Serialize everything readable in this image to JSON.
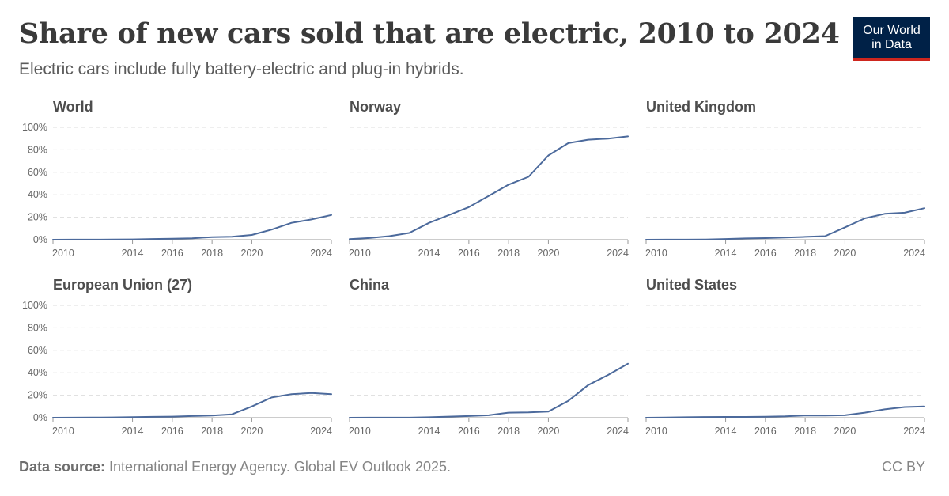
{
  "header": {
    "title": "Share of new cars sold that are electric, 2010 to 2024",
    "subtitle": "Electric cars include fully battery-electric and plug-in hybrids."
  },
  "logo": {
    "line1": "Our World",
    "line2": "in Data",
    "bg_color": "#002147",
    "accent_color": "#ce261e"
  },
  "footer": {
    "source_label": "Data source:",
    "source_text": " International Energy Agency. Global EV Outlook 2025.",
    "license": "CC BY"
  },
  "chart_data": [
    {
      "type": "line",
      "title": "World",
      "x": [
        2010,
        2011,
        2012,
        2013,
        2014,
        2015,
        2016,
        2017,
        2018,
        2019,
        2020,
        2021,
        2022,
        2023,
        2024
      ],
      "values": [
        0.01,
        0.05,
        0.1,
        0.2,
        0.3,
        0.6,
        0.9,
        1.3,
        2.3,
        2.6,
        4.2,
        9,
        15,
        18,
        22
      ]
    },
    {
      "type": "line",
      "title": "Norway",
      "x": [
        2010,
        2011,
        2012,
        2013,
        2014,
        2015,
        2016,
        2017,
        2018,
        2019,
        2020,
        2021,
        2022,
        2023,
        2024
      ],
      "values": [
        0.5,
        1.5,
        3.2,
        6,
        15,
        22,
        29,
        39,
        49,
        56,
        75,
        86,
        89,
        90,
        92
      ]
    },
    {
      "type": "line",
      "title": "United Kingdom",
      "x": [
        2010,
        2011,
        2012,
        2013,
        2014,
        2015,
        2016,
        2017,
        2018,
        2019,
        2020,
        2021,
        2022,
        2023,
        2024
      ],
      "values": [
        0.01,
        0.05,
        0.1,
        0.2,
        0.6,
        1.1,
        1.4,
        1.9,
        2.5,
        3.2,
        11,
        19,
        23,
        24,
        28
      ]
    },
    {
      "type": "line",
      "title": "European Union (27)",
      "x": [
        2010,
        2011,
        2012,
        2013,
        2014,
        2015,
        2016,
        2017,
        2018,
        2019,
        2020,
        2021,
        2022,
        2023,
        2024
      ],
      "values": [
        0.01,
        0.05,
        0.15,
        0.3,
        0.5,
        0.8,
        1,
        1.5,
        2,
        3,
        10,
        18,
        21,
        22,
        21
      ]
    },
    {
      "type": "line",
      "title": "China",
      "x": [
        2010,
        2011,
        2012,
        2013,
        2014,
        2015,
        2016,
        2017,
        2018,
        2019,
        2020,
        2021,
        2022,
        2023,
        2024
      ],
      "values": [
        0.01,
        0.05,
        0.1,
        0.1,
        0.4,
        1,
        1.5,
        2.2,
        4.5,
        4.8,
        5.5,
        15,
        29,
        38,
        48
      ]
    },
    {
      "type": "line",
      "title": "United States",
      "x": [
        2010,
        2011,
        2012,
        2013,
        2014,
        2015,
        2016,
        2017,
        2018,
        2019,
        2020,
        2021,
        2022,
        2023,
        2024
      ],
      "values": [
        0.01,
        0.2,
        0.4,
        0.6,
        0.7,
        0.7,
        0.9,
        1.2,
        2,
        2,
        2.2,
        4.5,
        7.5,
        9.5,
        10
      ]
    }
  ],
  "axes": {
    "y_ticks": [
      "0%",
      "20%",
      "40%",
      "60%",
      "80%",
      "100%"
    ],
    "y_values": [
      0,
      20,
      40,
      60,
      80,
      100
    ],
    "ylim": [
      0,
      100
    ],
    "x_ticks": [
      2010,
      2014,
      2016,
      2018,
      2020,
      2024
    ],
    "xlim": [
      2010,
      2024
    ],
    "grid": "horizontal dashed",
    "line_color": "#4c6a9c",
    "grid_color": "#dddddd"
  }
}
